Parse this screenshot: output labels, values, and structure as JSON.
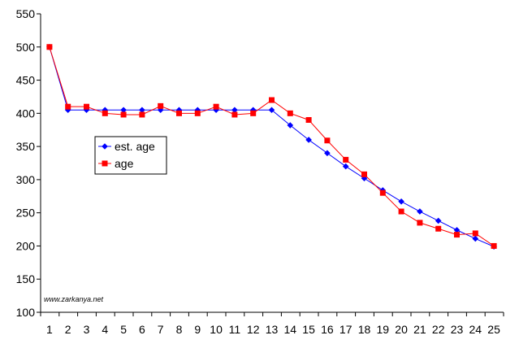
{
  "watermark": "www.zarkanya.net",
  "chart_data": {
    "type": "line",
    "title": "",
    "xlabel": "",
    "ylabel": "",
    "x": [
      1,
      2,
      3,
      4,
      5,
      6,
      7,
      8,
      9,
      10,
      11,
      12,
      13,
      14,
      15,
      16,
      17,
      18,
      19,
      20,
      21,
      22,
      23,
      24,
      25
    ],
    "ylim": [
      100,
      550
    ],
    "yticks": [
      100,
      150,
      200,
      250,
      300,
      350,
      400,
      450,
      500,
      550
    ],
    "grid": false,
    "legend_position": "middle-left",
    "series": [
      {
        "name": "est. age",
        "color": "#0000ff",
        "marker": "diamond",
        "values": [
          500,
          405,
          405,
          405,
          405,
          405,
          405,
          405,
          405,
          405,
          405,
          405,
          405,
          382,
          360,
          340,
          320,
          302,
          284,
          267,
          252,
          238,
          224,
          211,
          199
        ]
      },
      {
        "name": "age",
        "color": "#ff0000",
        "marker": "square",
        "values": [
          500,
          410,
          410,
          400,
          398,
          398,
          411,
          400,
          400,
          410,
          398,
          400,
          420,
          400,
          390,
          359,
          330,
          308,
          280,
          252,
          235,
          226,
          217,
          219,
          200
        ]
      }
    ]
  }
}
